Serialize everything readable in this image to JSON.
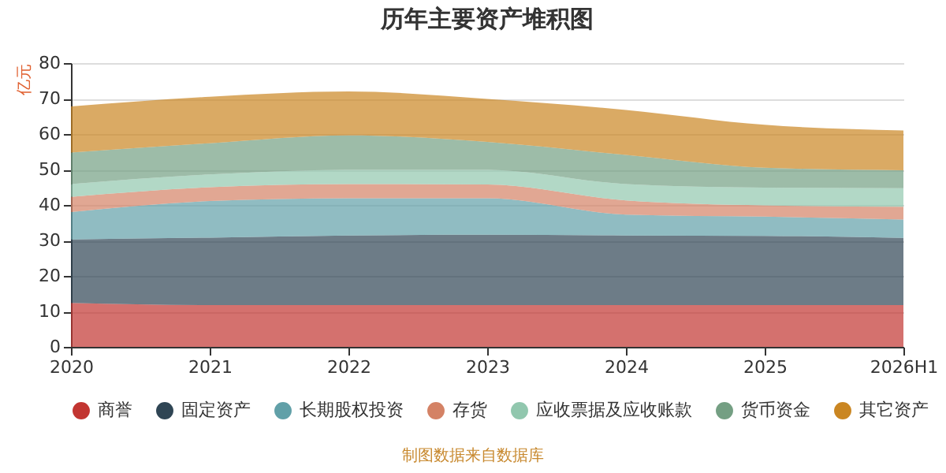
{
  "chart_data": {
    "type": "area",
    "title": "历年主要资产堆积图",
    "ylabel": "亿元",
    "stacked": true,
    "categories": [
      "2020",
      "2021",
      "2022",
      "2023",
      "2024",
      "2025",
      "2026H1"
    ],
    "ylim": [
      0,
      80
    ],
    "yticks": [
      0,
      10,
      20,
      30,
      40,
      50,
      60,
      70,
      80
    ],
    "grid": "y",
    "legend": "bottom",
    "annotations": [
      "制图数据来自数据库"
    ],
    "series": [
      {
        "name": "商誉",
        "color": "#c23531",
        "values": [
          12.4,
          11.8,
          11.8,
          11.8,
          11.8,
          11.8,
          11.8
        ]
      },
      {
        "name": "固定资产",
        "color": "#2f4554",
        "values": [
          17.9,
          19.0,
          19.6,
          19.8,
          19.6,
          19.5,
          18.9
        ]
      },
      {
        "name": "长期股权投资",
        "color": "#61a0a8",
        "values": [
          7.7,
          10.3,
          10.5,
          10.3,
          5.9,
          5.4,
          5.2
        ]
      },
      {
        "name": "存货",
        "color": "#d48265",
        "values": [
          4.3,
          3.9,
          4.0,
          3.9,
          4.0,
          3.2,
          3.6
        ]
      },
      {
        "name": "应收票据及应收账款",
        "color": "#91c7ae",
        "values": [
          3.6,
          3.6,
          4.0,
          4.1,
          4.6,
          5.0,
          5.2
        ]
      },
      {
        "name": "货币资金",
        "color": "#749f83",
        "values": [
          8.9,
          8.8,
          9.7,
          7.9,
          8.2,
          5.6,
          5.1
        ]
      },
      {
        "name": "其它资产",
        "color": "#ca8622",
        "values": [
          13.0,
          13.1,
          12.4,
          12.1,
          12.7,
          12.1,
          11.2
        ]
      }
    ]
  }
}
